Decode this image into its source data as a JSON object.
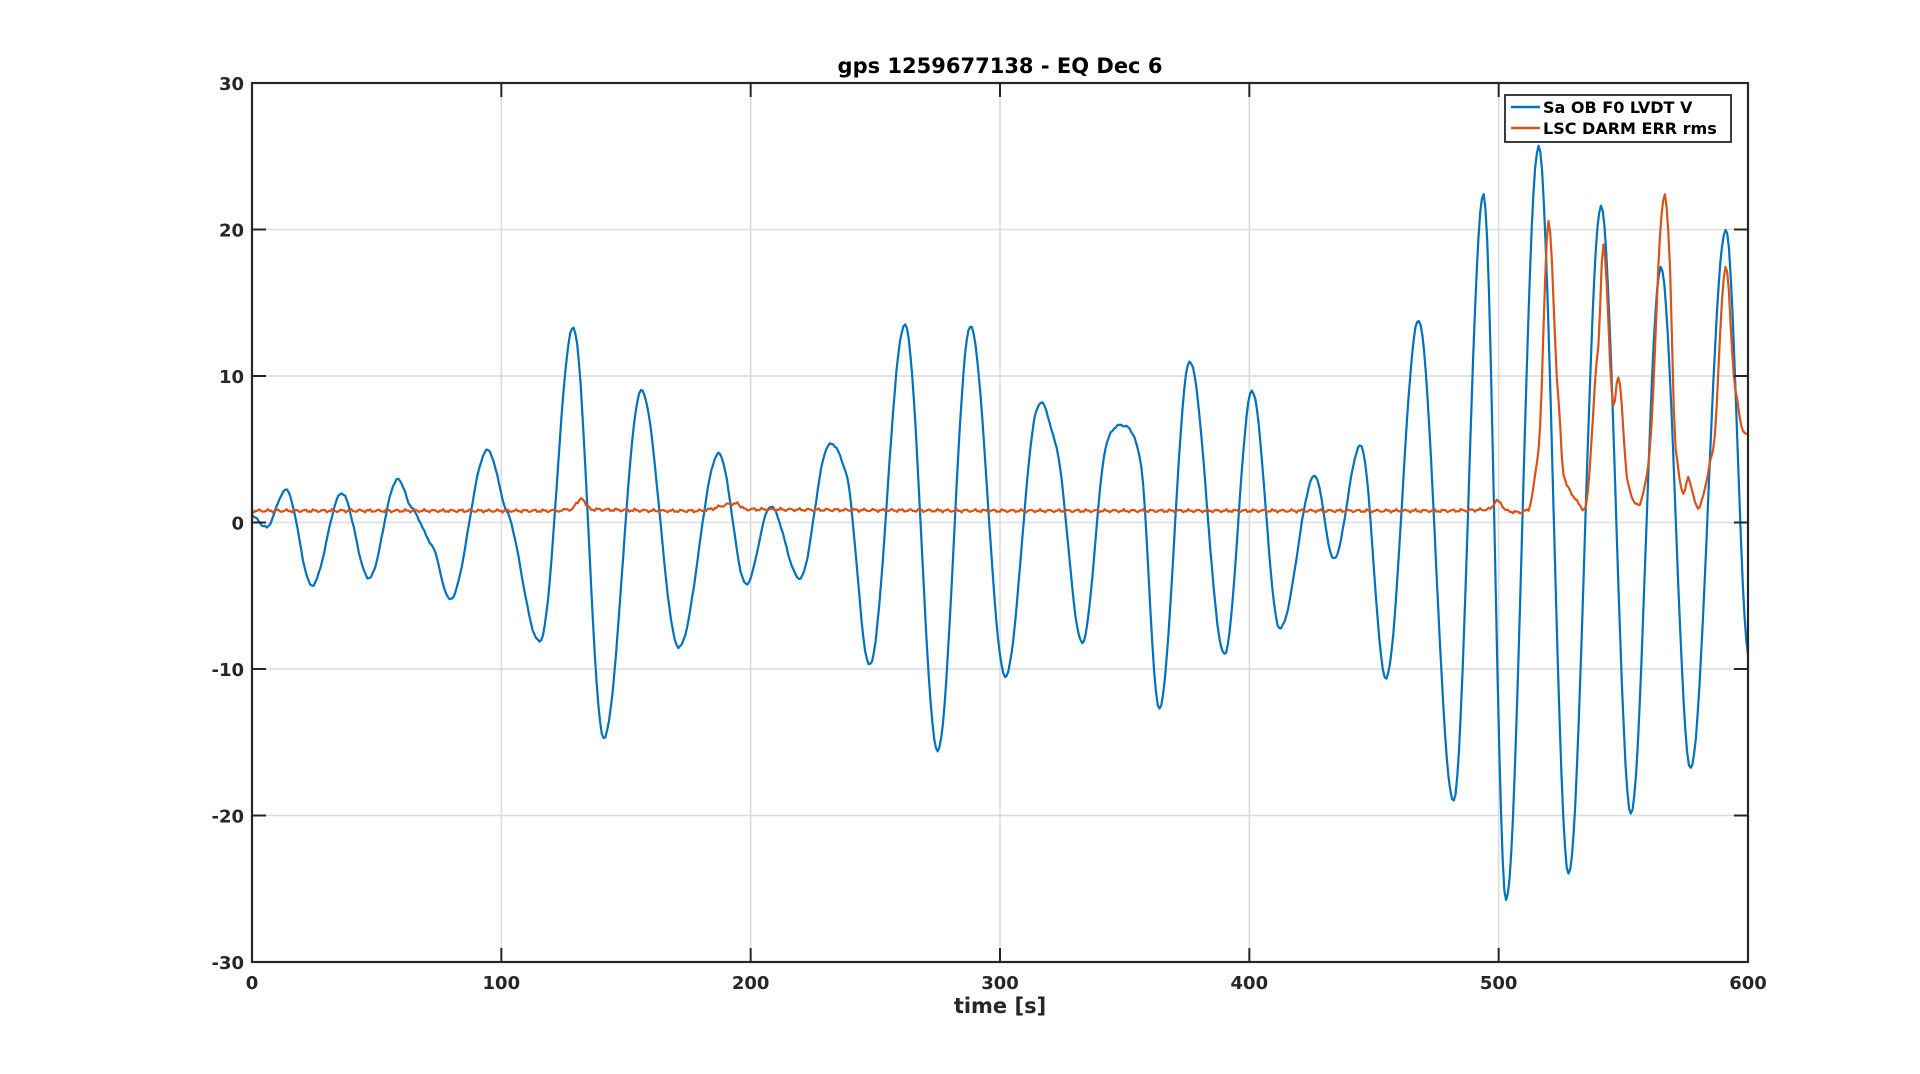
{
  "chart_data": {
    "type": "line",
    "title": "gps 1259677138 - EQ Dec 6",
    "xlabel": "time [s]",
    "ylabel": "",
    "xlim": [
      0,
      600
    ],
    "ylim": [
      -30,
      30
    ],
    "x_ticks": [
      "0",
      "100",
      "200",
      "300",
      "400",
      "500",
      "600"
    ],
    "y_ticks": [
      "30",
      "20",
      "10",
      "0",
      "-10",
      "-20",
      "-30"
    ],
    "grid": true,
    "legend_position": "top-right",
    "series": [
      {
        "name": "Sa OB F0 LVDT V",
        "color": "#0072bd",
        "points": [
          [
            0,
            0.5
          ],
          [
            6,
            -0.3
          ],
          [
            14,
            2.2
          ],
          [
            24,
            -4.3
          ],
          [
            36,
            2.0
          ],
          [
            47,
            -3.8
          ],
          [
            58,
            2.9
          ],
          [
            64,
            1.0
          ],
          [
            72,
            -1.5
          ],
          [
            80,
            -5.2
          ],
          [
            94,
            4.9
          ],
          [
            102,
            0.8
          ],
          [
            116,
            -8.0
          ],
          [
            129,
            13.3
          ],
          [
            141,
            -14.7
          ],
          [
            156,
            9.0
          ],
          [
            171,
            -8.5
          ],
          [
            187,
            4.7
          ],
          [
            198,
            -4.2
          ],
          [
            208,
            1.1
          ],
          [
            220,
            -3.8
          ],
          [
            231,
            5.2
          ],
          [
            238,
            3.5
          ],
          [
            248,
            -9.7
          ],
          [
            262,
            13.5
          ],
          [
            275,
            -15.6
          ],
          [
            288,
            13.4
          ],
          [
            302,
            -10.5
          ],
          [
            315,
            7.8
          ],
          [
            322,
            5.5
          ],
          [
            333,
            -8.2
          ],
          [
            343,
            5.5
          ],
          [
            350,
            6.6
          ],
          [
            356,
            4.5
          ],
          [
            364,
            -12.7
          ],
          [
            376,
            11.0
          ],
          [
            390,
            -9.0
          ],
          [
            401,
            9.0
          ],
          [
            412,
            -7.2
          ],
          [
            426,
            3.2
          ],
          [
            434,
            -2.5
          ],
          [
            445,
            5.2
          ],
          [
            455,
            -10.6
          ],
          [
            468,
            13.8
          ],
          [
            482,
            -19.0
          ],
          [
            494,
            22.4
          ],
          [
            503,
            -25.8
          ],
          [
            516,
            25.7
          ],
          [
            528,
            -24.0
          ],
          [
            541,
            21.6
          ],
          [
            553,
            -19.9
          ],
          [
            565,
            17.4
          ],
          [
            577,
            -16.8
          ],
          [
            591,
            20.0
          ],
          [
            600,
            -9.0
          ]
        ]
      },
      {
        "name": "LSC DARM ERR rms",
        "color": "#d95319",
        "points": [
          [
            0,
            0.8
          ],
          [
            60,
            0.8
          ],
          [
            120,
            0.8
          ],
          [
            128,
            0.9
          ],
          [
            132,
            1.6
          ],
          [
            136,
            0.9
          ],
          [
            180,
            0.8
          ],
          [
            194,
            1.3
          ],
          [
            198,
            0.9
          ],
          [
            300,
            0.8
          ],
          [
            400,
            0.8
          ],
          [
            480,
            0.8
          ],
          [
            496,
            0.9
          ],
          [
            500,
            1.5
          ],
          [
            503,
            0.8
          ],
          [
            512,
            0.9
          ],
          [
            516,
            5.0
          ],
          [
            520,
            20.5
          ],
          [
            524,
            8.5
          ],
          [
            526,
            3.2
          ],
          [
            530,
            1.8
          ],
          [
            535,
            1.2
          ],
          [
            540,
            12.0
          ],
          [
            542,
            19.0
          ],
          [
            546,
            8.0
          ],
          [
            548,
            10.0
          ],
          [
            552,
            2.5
          ],
          [
            556,
            1.2
          ],
          [
            560,
            4.0
          ],
          [
            566,
            22.0
          ],
          [
            568,
            20.0
          ],
          [
            571,
            5.0
          ],
          [
            574,
            2.0
          ],
          [
            576,
            3.0
          ],
          [
            580,
            1.0
          ],
          [
            586,
            5.0
          ],
          [
            591,
            17.5
          ],
          [
            595,
            9.0
          ],
          [
            598,
            6.3
          ],
          [
            600,
            6.0
          ]
        ]
      }
    ]
  }
}
